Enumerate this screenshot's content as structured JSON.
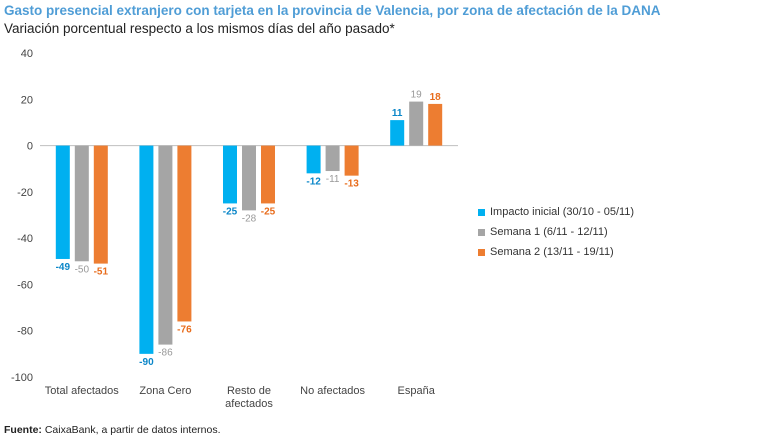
{
  "header": {
    "title": "Gasto presencial extranjero con tarjeta en la provincia de Valencia, por zona de afectación de la DANA",
    "subtitle": "Variación porcentual respecto a los mismos días del año pasado*"
  },
  "source": {
    "label": "Fuente:",
    "text": " CaixaBank, a partir de datos internos."
  },
  "chart_data": {
    "type": "bar",
    "categories": [
      "Total afectados",
      "Zona Cero",
      "Resto de afectados",
      "No afectados",
      "España"
    ],
    "category_lines": [
      [
        "Total afectados"
      ],
      [
        "Zona Cero"
      ],
      [
        "Resto de",
        "afectados"
      ],
      [
        "No afectados"
      ],
      [
        "España"
      ]
    ],
    "series": [
      {
        "name": "Impacto inicial (30/10 - 05/11)",
        "values": [
          -49,
          -90,
          -25,
          -12,
          11
        ],
        "color": "#00b0f0",
        "label_color": "#0a86c8",
        "label_bold": true
      },
      {
        "name": "Semana 1 (6/11 - 12/11)",
        "values": [
          -50,
          -86,
          -28,
          -11,
          19
        ],
        "color": "#a5a5a5",
        "label_color": "#999999",
        "label_bold": false
      },
      {
        "name": "Semana 2 (13/11 - 19/11)",
        "values": [
          -51,
          -76,
          -25,
          -13,
          18
        ],
        "color": "#ed7d31",
        "label_color": "#e86c1c",
        "label_bold": true
      }
    ],
    "ylim": [
      -100,
      40
    ],
    "yticks": [
      40,
      20,
      0,
      -20,
      -40,
      -60,
      -80,
      -100
    ],
    "ylabels": [
      "40",
      "20",
      "0",
      "-20",
      "-40",
      "-60",
      "-80",
      "-100"
    ],
    "data_labels": [
      [
        "-49",
        "-90",
        "-25",
        "-12",
        "11"
      ],
      [
        "-50",
        "-86",
        "-28",
        "-11",
        "19"
      ],
      [
        "-51",
        "-76",
        "-25",
        "-13",
        "18"
      ]
    ],
    "grid": false,
    "legend_position": "right"
  }
}
